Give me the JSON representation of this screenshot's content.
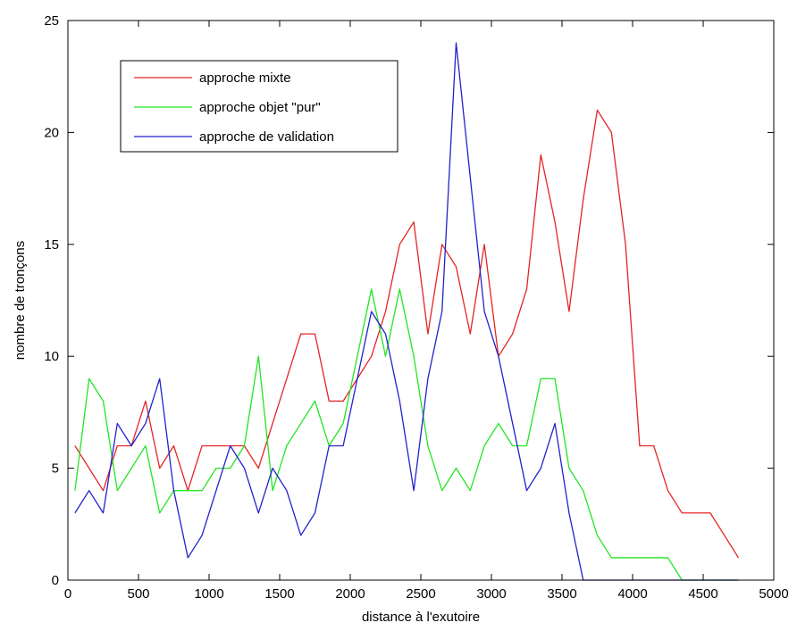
{
  "chart_data": {
    "type": "line",
    "xlabel": "distance à l'exutoire",
    "ylabel": "nombre de tronçons",
    "xlim": [
      0,
      5000
    ],
    "ylim": [
      0,
      25
    ],
    "x_ticks": [
      0,
      500,
      1000,
      1500,
      2000,
      2500,
      3000,
      3500,
      4000,
      4500,
      5000
    ],
    "y_ticks": [
      0,
      5,
      10,
      15,
      20,
      25
    ],
    "x_tick_labels": [
      "0",
      "500",
      "1000",
      "1500",
      "2000",
      "2500",
      "3000",
      "3500",
      "4000",
      "4500",
      "5000"
    ],
    "y_tick_labels": [
      "0",
      "5",
      "10",
      "15",
      "20",
      "25"
    ],
    "grid": false,
    "legend_position": "top-left",
    "series": [
      {
        "name": "approche mixte",
        "color": "#e52424",
        "x": [
          50,
          150,
          250,
          350,
          450,
          550,
          650,
          750,
          850,
          950,
          1050,
          1150,
          1250,
          1350,
          1450,
          1550,
          1650,
          1750,
          1850,
          1950,
          2050,
          2150,
          2250,
          2350,
          2450,
          2550,
          2650,
          2750,
          2850,
          2950,
          3050,
          3150,
          3250,
          3350,
          3450,
          3550,
          3650,
          3750,
          3850,
          3950,
          4050,
          4150,
          4250,
          4350,
          4450,
          4550,
          4650,
          4750
        ],
        "y": [
          6,
          5,
          4,
          6,
          6,
          8,
          5,
          6,
          4,
          6,
          6,
          6,
          6,
          5,
          7,
          9,
          11,
          11,
          8,
          8,
          9,
          10,
          12,
          15,
          16,
          11,
          15,
          14,
          11,
          15,
          10,
          11,
          13,
          19,
          16,
          12,
          17,
          21,
          20,
          15,
          6,
          6,
          4,
          3,
          3,
          3,
          2,
          1
        ]
      },
      {
        "name": "approche objet \"pur\"",
        "color": "#22e522",
        "x": [
          50,
          150,
          250,
          350,
          450,
          550,
          650,
          750,
          850,
          950,
          1050,
          1150,
          1250,
          1350,
          1450,
          1550,
          1650,
          1750,
          1850,
          1950,
          2050,
          2150,
          2250,
          2350,
          2450,
          2550,
          2650,
          2750,
          2850,
          2950,
          3050,
          3150,
          3250,
          3350,
          3450,
          3550,
          3650,
          3750,
          3850,
          3950,
          4050,
          4150,
          4250,
          4350,
          4450,
          4550,
          4650,
          4750
        ],
        "y": [
          4,
          9,
          8,
          4,
          5,
          6,
          3,
          4,
          4,
          4,
          5,
          5,
          6,
          10,
          4,
          6,
          7,
          8,
          6,
          7,
          10,
          13,
          10,
          13,
          10,
          6,
          4,
          5,
          4,
          6,
          7,
          6,
          6,
          9,
          9,
          5,
          4,
          2,
          1,
          1,
          1,
          1,
          1,
          0,
          0,
          0,
          0,
          0
        ]
      },
      {
        "name": "approche de validation",
        "color": "#2222cc",
        "x": [
          50,
          150,
          250,
          350,
          450,
          550,
          650,
          750,
          850,
          950,
          1050,
          1150,
          1250,
          1350,
          1450,
          1550,
          1650,
          1750,
          1850,
          1950,
          2050,
          2150,
          2250,
          2350,
          2450,
          2550,
          2650,
          2750,
          2850,
          2950,
          3050,
          3150,
          3250,
          3350,
          3450,
          3550,
          3650,
          3750,
          3850,
          3950,
          4050,
          4150,
          4250,
          4350,
          4450,
          4550,
          4650,
          4750
        ],
        "y": [
          3,
          4,
          3,
          7,
          6,
          7,
          9,
          4,
          1,
          2,
          4,
          6,
          5,
          3,
          5,
          4,
          2,
          3,
          6,
          6,
          9,
          12,
          11,
          8,
          4,
          9,
          12,
          24,
          18,
          12,
          10,
          7,
          4,
          5,
          7,
          3,
          0,
          0,
          0,
          0,
          0,
          0,
          0,
          0,
          0,
          0,
          0,
          0
        ]
      }
    ]
  }
}
